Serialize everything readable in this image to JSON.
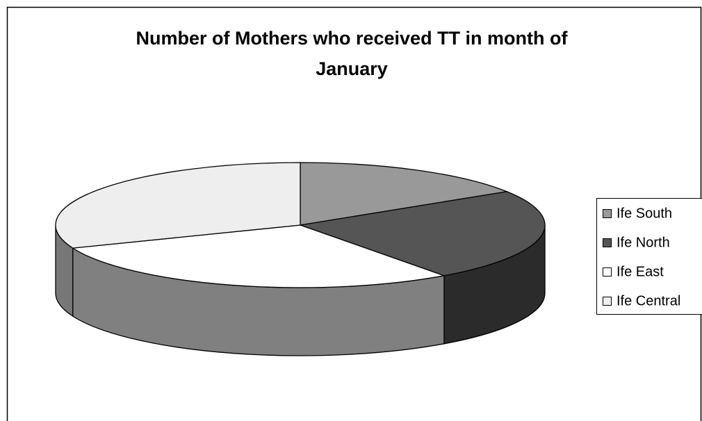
{
  "chart_data": {
    "type": "pie3d",
    "title": [
      "Number of Mothers who received TT in month of",
      "January"
    ],
    "categories": [
      "Ife South",
      "Ife North",
      "Ife East",
      "Ife Central"
    ],
    "values": [
      16,
      24,
      29,
      31
    ],
    "colors": [
      "#999999",
      "#555555",
      "#ffffff",
      "#eeeeee"
    ],
    "legend": "right"
  }
}
